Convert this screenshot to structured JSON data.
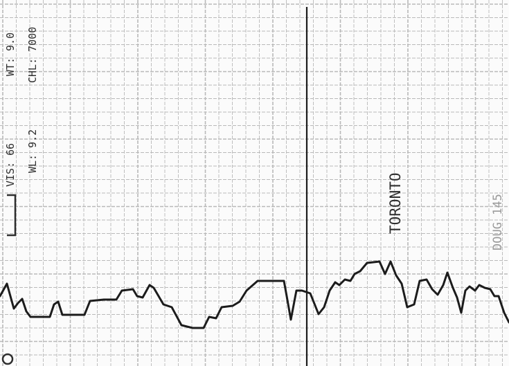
{
  "annotations": {
    "vis": "VIS: 66",
    "wt": "WT: 9.0",
    "wl": "WL: 9.2",
    "chl": "CHL: 7000",
    "location": "TORONTO",
    "margin_note": "DOUG 145"
  },
  "style": {
    "paper_color": "#fbfbfb",
    "grid_color": "#b9b9b9",
    "ink_color": "#1c1c1c"
  }
}
